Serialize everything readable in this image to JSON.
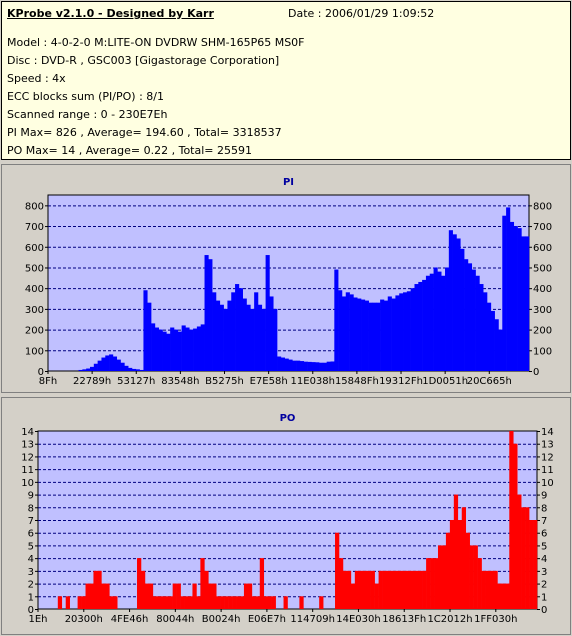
{
  "header": {
    "title": "KProbe v2.1.0 - Designed by Karr",
    "date": "Date : 2006/01/29 1:09:52",
    "model": "Model : 4-0-2-0 M:LITE-ON DVDRW SHM-165P65 MS0F",
    "disc": "Disc : DVD-R , GSC003 [Gigastorage Corporation]",
    "speed": "Speed : 4x",
    "ecc": "ECC blocks sum (PI/PO) : 8/1",
    "range": "Scanned range : 0 - 230E7Eh",
    "pi_stats": "PI Max= 826 , Average= 194.60 , Total= 3318537",
    "po_stats": "PO Max= 14 , Average= 0.22 , Total= 25591"
  },
  "colors": {
    "plot_bg": "#c0c0ff",
    "bar": "#0000ff",
    "po_bar": "#ff0000",
    "title": "#0000a0",
    "grid": "#000080",
    "panel": "#d4d0c8"
  },
  "chart_data": [
    {
      "type": "bar",
      "title": "PI",
      "xlabel": "",
      "ylabel": "",
      "ylim": [
        0,
        850
      ],
      "yticks": [
        0,
        100,
        200,
        300,
        400,
        500,
        600,
        700,
        800
      ],
      "xtick_labels": [
        "8Fh",
        "22789h",
        "53127h",
        "83548h",
        "B5275h",
        "E7E58h",
        "11E038h",
        "15848Fh",
        "19312Fh",
        "1D0051h",
        "20C665h"
      ],
      "grid": true,
      "series": [
        {
          "values": [
            0,
            0,
            0,
            0,
            0,
            0,
            0,
            0,
            5,
            8,
            12,
            20,
            35,
            50,
            65,
            75,
            80,
            70,
            55,
            40,
            25,
            15,
            10,
            8,
            5,
            390,
            330,
            230,
            210,
            200,
            190,
            180,
            210,
            200,
            190,
            220,
            210,
            200,
            205,
            215,
            225,
            560,
            540,
            380,
            340,
            320,
            300,
            340,
            380,
            420,
            400,
            350,
            320,
            300,
            380,
            320,
            300,
            560,
            360,
            300,
            70,
            65,
            60,
            55,
            50,
            50,
            48,
            45,
            44,
            43,
            42,
            40,
            40,
            45,
            46,
            490,
            390,
            360,
            380,
            370,
            355,
            350,
            345,
            340,
            330,
            330,
            330,
            345,
            340,
            360,
            350,
            365,
            375,
            380,
            385,
            400,
            420,
            430,
            440,
            460,
            470,
            500,
            480,
            460,
            500,
            680,
            660,
            640,
            590,
            540,
            520,
            490,
            460,
            420,
            380,
            330,
            290,
            250,
            200,
            750,
            790,
            720,
            700,
            690,
            650,
            650
          ]
        }
      ]
    },
    {
      "type": "bar",
      "title": "PO",
      "xlabel": "",
      "ylabel": "",
      "ylim": [
        0,
        14
      ],
      "yticks": [
        0,
        1,
        2,
        3,
        4,
        5,
        6,
        7,
        8,
        9,
        10,
        11,
        12,
        13,
        14
      ],
      "xtick_labels": [
        "1Eh",
        "20300h",
        "4FE46h",
        "80044h",
        "B0024h",
        "E06E7h",
        "114709h",
        "14E030h",
        "18613Fh",
        "1C2012h",
        "1FF030h"
      ],
      "grid": true,
      "series": [
        {
          "values": [
            0,
            0,
            0,
            0,
            0,
            1,
            0,
            1,
            0,
            0,
            1,
            1,
            2,
            2,
            3,
            3,
            2,
            2,
            1,
            1,
            0,
            0,
            0,
            0,
            0,
            4,
            3,
            2,
            2,
            1,
            1,
            1,
            1,
            1,
            2,
            2,
            1,
            1,
            1,
            2,
            1,
            4,
            3,
            2,
            2,
            1,
            1,
            1,
            1,
            1,
            1,
            1,
            2,
            2,
            1,
            1,
            4,
            1,
            1,
            1,
            0,
            0,
            1,
            0,
            0,
            0,
            1,
            0,
            0,
            0,
            0,
            1,
            0,
            0,
            0,
            6,
            4,
            3,
            3,
            2,
            3,
            3,
            3,
            3,
            3,
            2,
            3,
            3,
            3,
            3,
            3,
            3,
            3,
            3,
            3,
            3,
            3,
            3,
            4,
            4,
            4,
            5,
            5,
            6,
            7,
            9,
            7,
            8,
            6,
            5,
            5,
            4,
            3,
            3,
            3,
            3,
            2,
            2,
            2,
            14,
            13,
            9,
            8,
            8,
            7,
            7
          ]
        }
      ]
    }
  ]
}
